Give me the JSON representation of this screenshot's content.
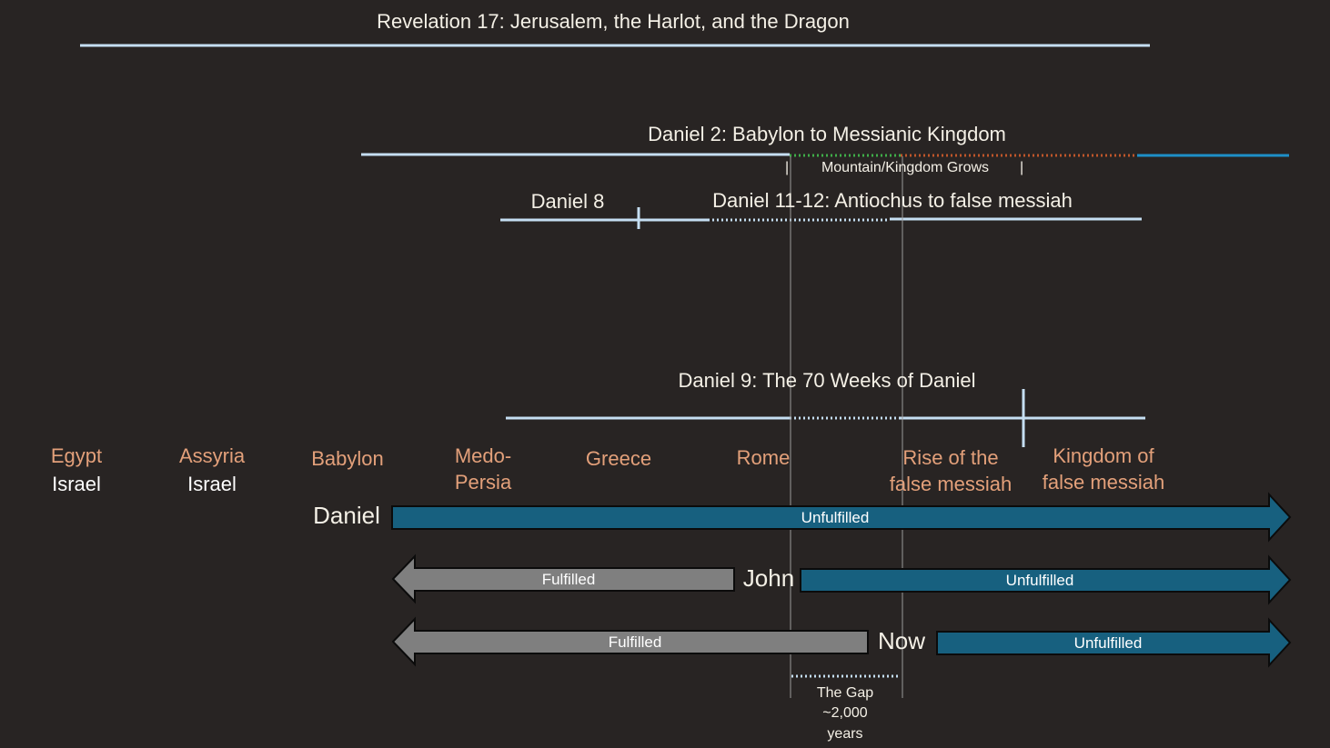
{
  "revelation": {
    "title": "Revelation 17: Jerusalem, the Harlot, and the Dragon"
  },
  "daniel2": {
    "title": "Daniel 2: Babylon to Messianic Kingdom",
    "mountain_label": "Mountain/Kingdom Grows",
    "tick_left": "|",
    "tick_right": "|"
  },
  "daniel8": {
    "title": "Daniel 8"
  },
  "daniel11": {
    "title": "Daniel 11-12: Antiochus to false messiah"
  },
  "daniel9": {
    "title": "Daniel 9: The 70 Weeks of Daniel"
  },
  "kingdoms": {
    "egypt": {
      "line1": "Egypt",
      "line2": "Israel"
    },
    "assyria": {
      "line1": "Assyria",
      "line2": "Israel"
    },
    "babylon": "Babylon",
    "medo_persia": {
      "line1": "Medo-",
      "line2": "Persia"
    },
    "greece": "Greece",
    "rome": "Rome",
    "rise": {
      "line1": "Rise of the",
      "line2": "false messiah"
    },
    "kingdom": {
      "line1": "Kingdom of",
      "line2": "false messiah"
    }
  },
  "rows": {
    "daniel": {
      "label": "Daniel",
      "unfulfilled": "Unfulfilled"
    },
    "john": {
      "label": "John",
      "fulfilled": "Fulfilled",
      "unfulfilled": "Unfulfilled"
    },
    "now": {
      "label": "Now",
      "fulfilled": "Fulfilled",
      "unfulfilled": "Unfulfilled"
    }
  },
  "gap": {
    "line1": "The Gap",
    "line2": "~2,000",
    "line3": "years"
  },
  "colors": {
    "background": "#282423",
    "timeline": "#c5def2",
    "arrow_blue": "#17607f",
    "arrow_gray": "#7f7f7f",
    "green_dotted": "#3fae49",
    "orange_dotted": "#c0562a",
    "blue_line": "#1e8fc8",
    "kingdom_text": "#e3a07a"
  }
}
